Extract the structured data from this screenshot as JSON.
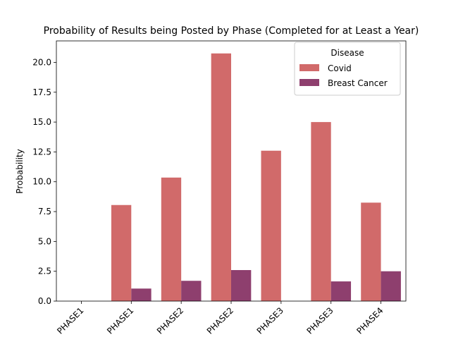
{
  "chart_data": {
    "type": "bar",
    "title": "Probability of Results being Posted by Phase (Completed for at Least a Year)",
    "xlabel": "",
    "ylabel": "Probability",
    "categories": [
      "PHASE1",
      "PHASE1",
      "PHASE2",
      "PHASE2",
      "PHASE3",
      "PHASE3",
      "PHASE4"
    ],
    "series": [
      {
        "name": "Covid",
        "color": "#d16a6a",
        "values": [
          0,
          8.05,
          10.35,
          20.75,
          12.6,
          15.0,
          8.25
        ]
      },
      {
        "name": "Breast Cancer",
        "color": "#8e3f6e",
        "values": [
          0,
          1.05,
          1.7,
          2.6,
          0,
          1.65,
          2.5
        ]
      }
    ],
    "ylim": [
      0,
      21.8
    ],
    "yticks": [
      0.0,
      2.5,
      5.0,
      7.5,
      10.0,
      12.5,
      15.0,
      17.5,
      20.0
    ],
    "ytick_labels": [
      "0.0",
      "2.5",
      "5.0",
      "7.5",
      "10.0",
      "12.5",
      "15.0",
      "17.5",
      "20.0"
    ],
    "legend": {
      "title": "Disease",
      "placement": "top-right"
    },
    "grid": false
  }
}
